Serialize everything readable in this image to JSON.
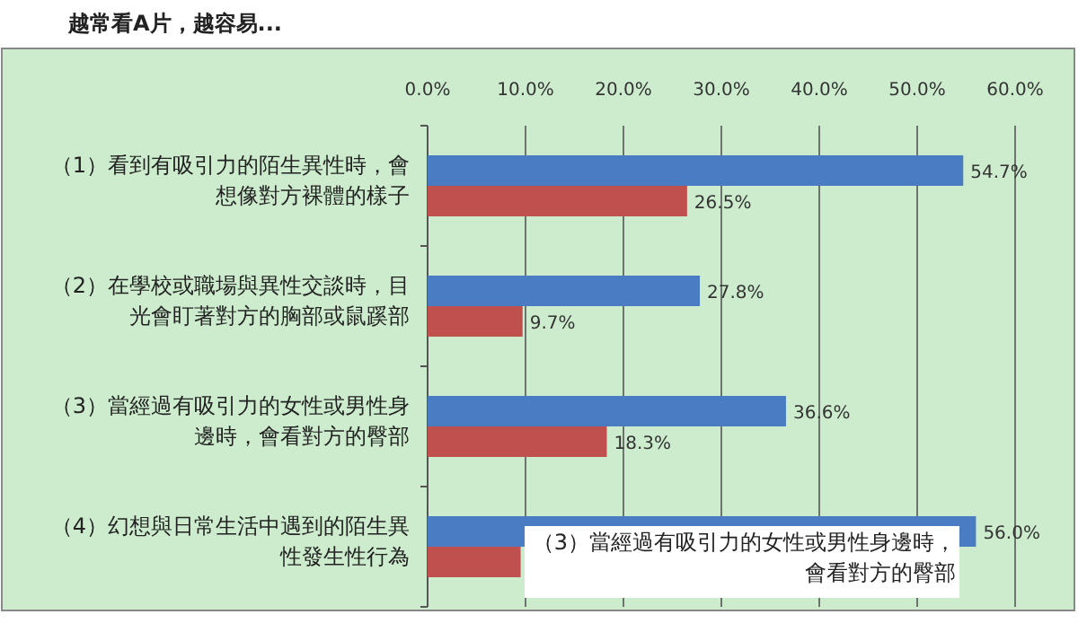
{
  "chart_data": {
    "type": "bar",
    "orientation": "horizontal",
    "title": "越常看A片，越容易...",
    "categories": [
      "（1）看到有吸引力的陌生異性時，會想像對方裸體的樣子",
      "（2）在學校或職場與異性交談時，目光會盯著對方的胸部或鼠蹊部",
      "（3）當經過有吸引力的女性或男性身邊時，會看對方的臀部",
      "（4）幻想與日常生活中遇到的陌生異性發生性行為"
    ],
    "series": [
      {
        "color": "#4a7cc4",
        "values": [
          54.7,
          27.8,
          36.6,
          56.0
        ],
        "value_labels": [
          "54.7%",
          "27.8%",
          "36.6%",
          "56.0%"
        ]
      },
      {
        "color": "#c0504d",
        "values": [
          26.5,
          9.7,
          18.3,
          9.5
        ],
        "value_labels": [
          "26.5%",
          "9.7%",
          "18.3%",
          null
        ]
      }
    ],
    "xlim": [
      0,
      60
    ],
    "xticks": [
      {
        "value": 0,
        "label": "0.0%"
      },
      {
        "value": 10,
        "label": "10.0%"
      },
      {
        "value": 20,
        "label": "20.0%"
      },
      {
        "value": 30,
        "label": "30.0%"
      },
      {
        "value": 40,
        "label": "40.0%"
      },
      {
        "value": 50,
        "label": "50.0%"
      },
      {
        "value": 60,
        "label": "60.0%"
      }
    ],
    "grid": "x",
    "annotations": [
      "（3）當經過有吸引力的女性或男性身邊時，會看對方的臀部"
    ]
  }
}
